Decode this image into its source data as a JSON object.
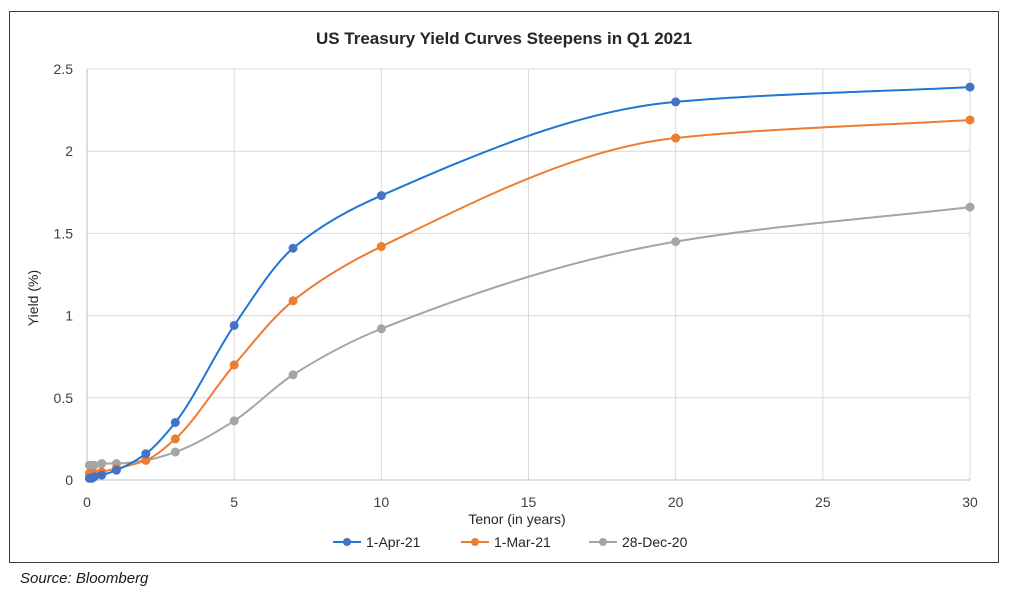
{
  "chart_data": {
    "type": "line",
    "title": "US Treasury Yield Curves Steepens in Q1 2021",
    "xlabel": "Tenor (in years)",
    "ylabel": "Yield (%)",
    "xlim": [
      0,
      30
    ],
    "ylim": [
      0,
      2.5
    ],
    "xticks": [
      "0",
      "5",
      "10",
      "15",
      "20",
      "25",
      "30"
    ],
    "yticks": [
      "0",
      "0.5",
      "1",
      "1.5",
      "2",
      "2.5"
    ],
    "grid": true,
    "legend_position": "bottom",
    "series": [
      {
        "name": "1-Apr-21",
        "color": "#1f77d4",
        "marker_color": "#4472c4",
        "x": [
          0.08,
          0.17,
          0.25,
          0.5,
          1,
          2,
          3,
          5,
          7,
          10,
          20,
          30
        ],
        "y": [
          0.01,
          0.01,
          0.02,
          0.03,
          0.06,
          0.16,
          0.35,
          0.94,
          1.41,
          1.73,
          2.3,
          2.39
        ]
      },
      {
        "name": "1-Mar-21",
        "color": "#ed7d31",
        "marker_color": "#ed7d31",
        "x": [
          0.08,
          0.17,
          0.25,
          0.5,
          1,
          2,
          3,
          5,
          7,
          10,
          20,
          30
        ],
        "y": [
          0.04,
          0.04,
          0.04,
          0.05,
          0.07,
          0.12,
          0.25,
          0.7,
          1.09,
          1.42,
          2.08,
          2.19
        ]
      },
      {
        "name": "28-Dec-20",
        "color": "#a5a5a5",
        "marker_color": "#a5a5a5",
        "x": [
          0.08,
          0.17,
          0.25,
          0.5,
          1,
          2,
          3,
          5,
          7,
          10,
          20,
          30
        ],
        "y": [
          0.09,
          0.09,
          0.09,
          0.1,
          0.1,
          0.12,
          0.17,
          0.36,
          0.64,
          0.92,
          1.45,
          1.66
        ]
      }
    ]
  },
  "source_note": "Source: Bloomberg"
}
